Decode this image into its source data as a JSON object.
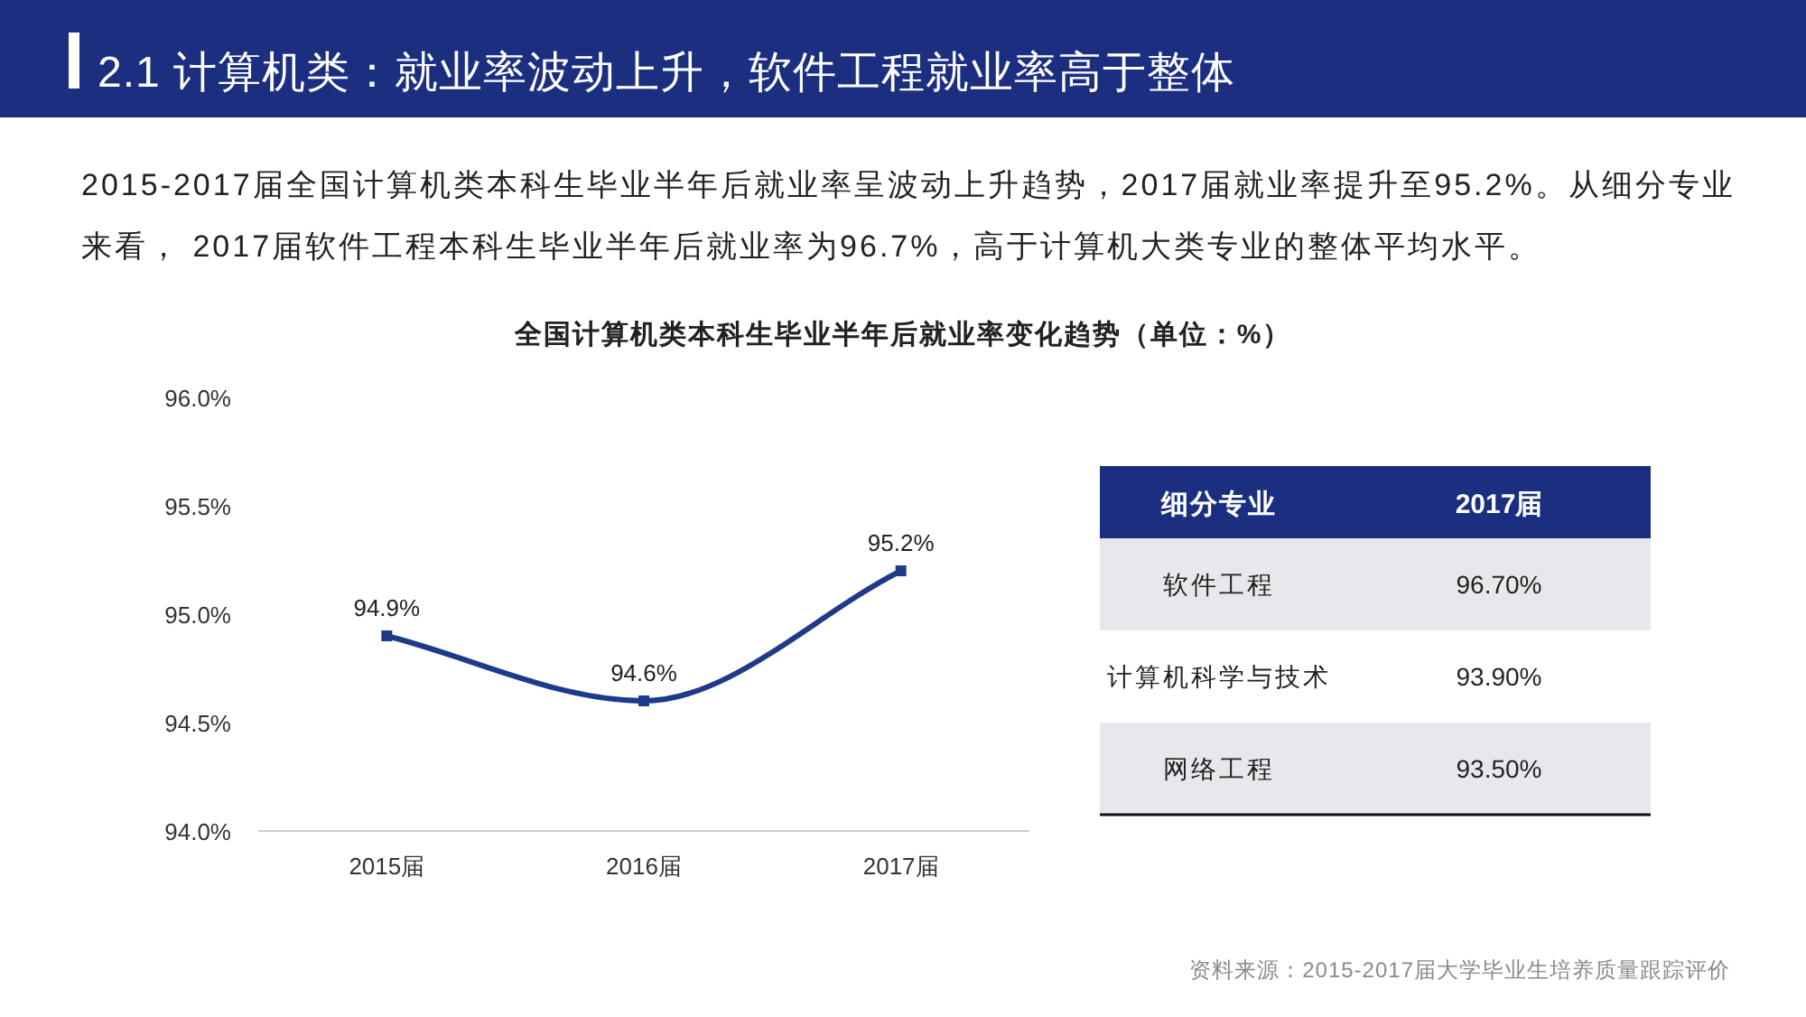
{
  "chart_data": [
    {
      "type": "line",
      "title": "全国计算机类本科生毕业半年后就业率变化趋势（单位：%）",
      "categories": [
        "2015届",
        "2016届",
        "2017届"
      ],
      "values": [
        94.9,
        94.6,
        95.2
      ],
      "value_labels": [
        "94.9%",
        "94.6%",
        "95.2%"
      ],
      "color": "#1f3a8a",
      "marker": "square",
      "line_style": "solid",
      "grid": false,
      "ylim": [
        94.0,
        96.0
      ],
      "yticks": [
        {
          "value": 94.0,
          "label": "94.0%"
        },
        {
          "value": 94.5,
          "label": "94.5%"
        },
        {
          "value": 95.0,
          "label": "95.0%"
        },
        {
          "value": 95.5,
          "label": "95.5%"
        },
        {
          "value": 96.0,
          "label": "96.0%"
        }
      ],
      "annotations": [
        "2.1 计算机类：就业率波动上升，软件工程就业率高于整体",
        "2015-2017届全国计算机类本科生毕业半年后就业率呈波动上升趋势，2017届就业率提升至95.2%。从细分专业来看， 2017届软件工程本科生毕业半年后就业率为96.7%，高于计算机大类专业的整体平均水平。",
        "资料来源：2015-2017届大学毕业生培养质量跟踪评价"
      ]
    },
    {
      "type": "other",
      "xlabel": "细分专业",
      "ylabel": "2017届",
      "categories": [
        "软件工程",
        "计算机科学与技术",
        "网络工程"
      ],
      "values": [
        96.7,
        93.9,
        93.5
      ],
      "value_labels": [
        "96.70%",
        "93.90%",
        "93.50%"
      ]
    }
  ]
}
